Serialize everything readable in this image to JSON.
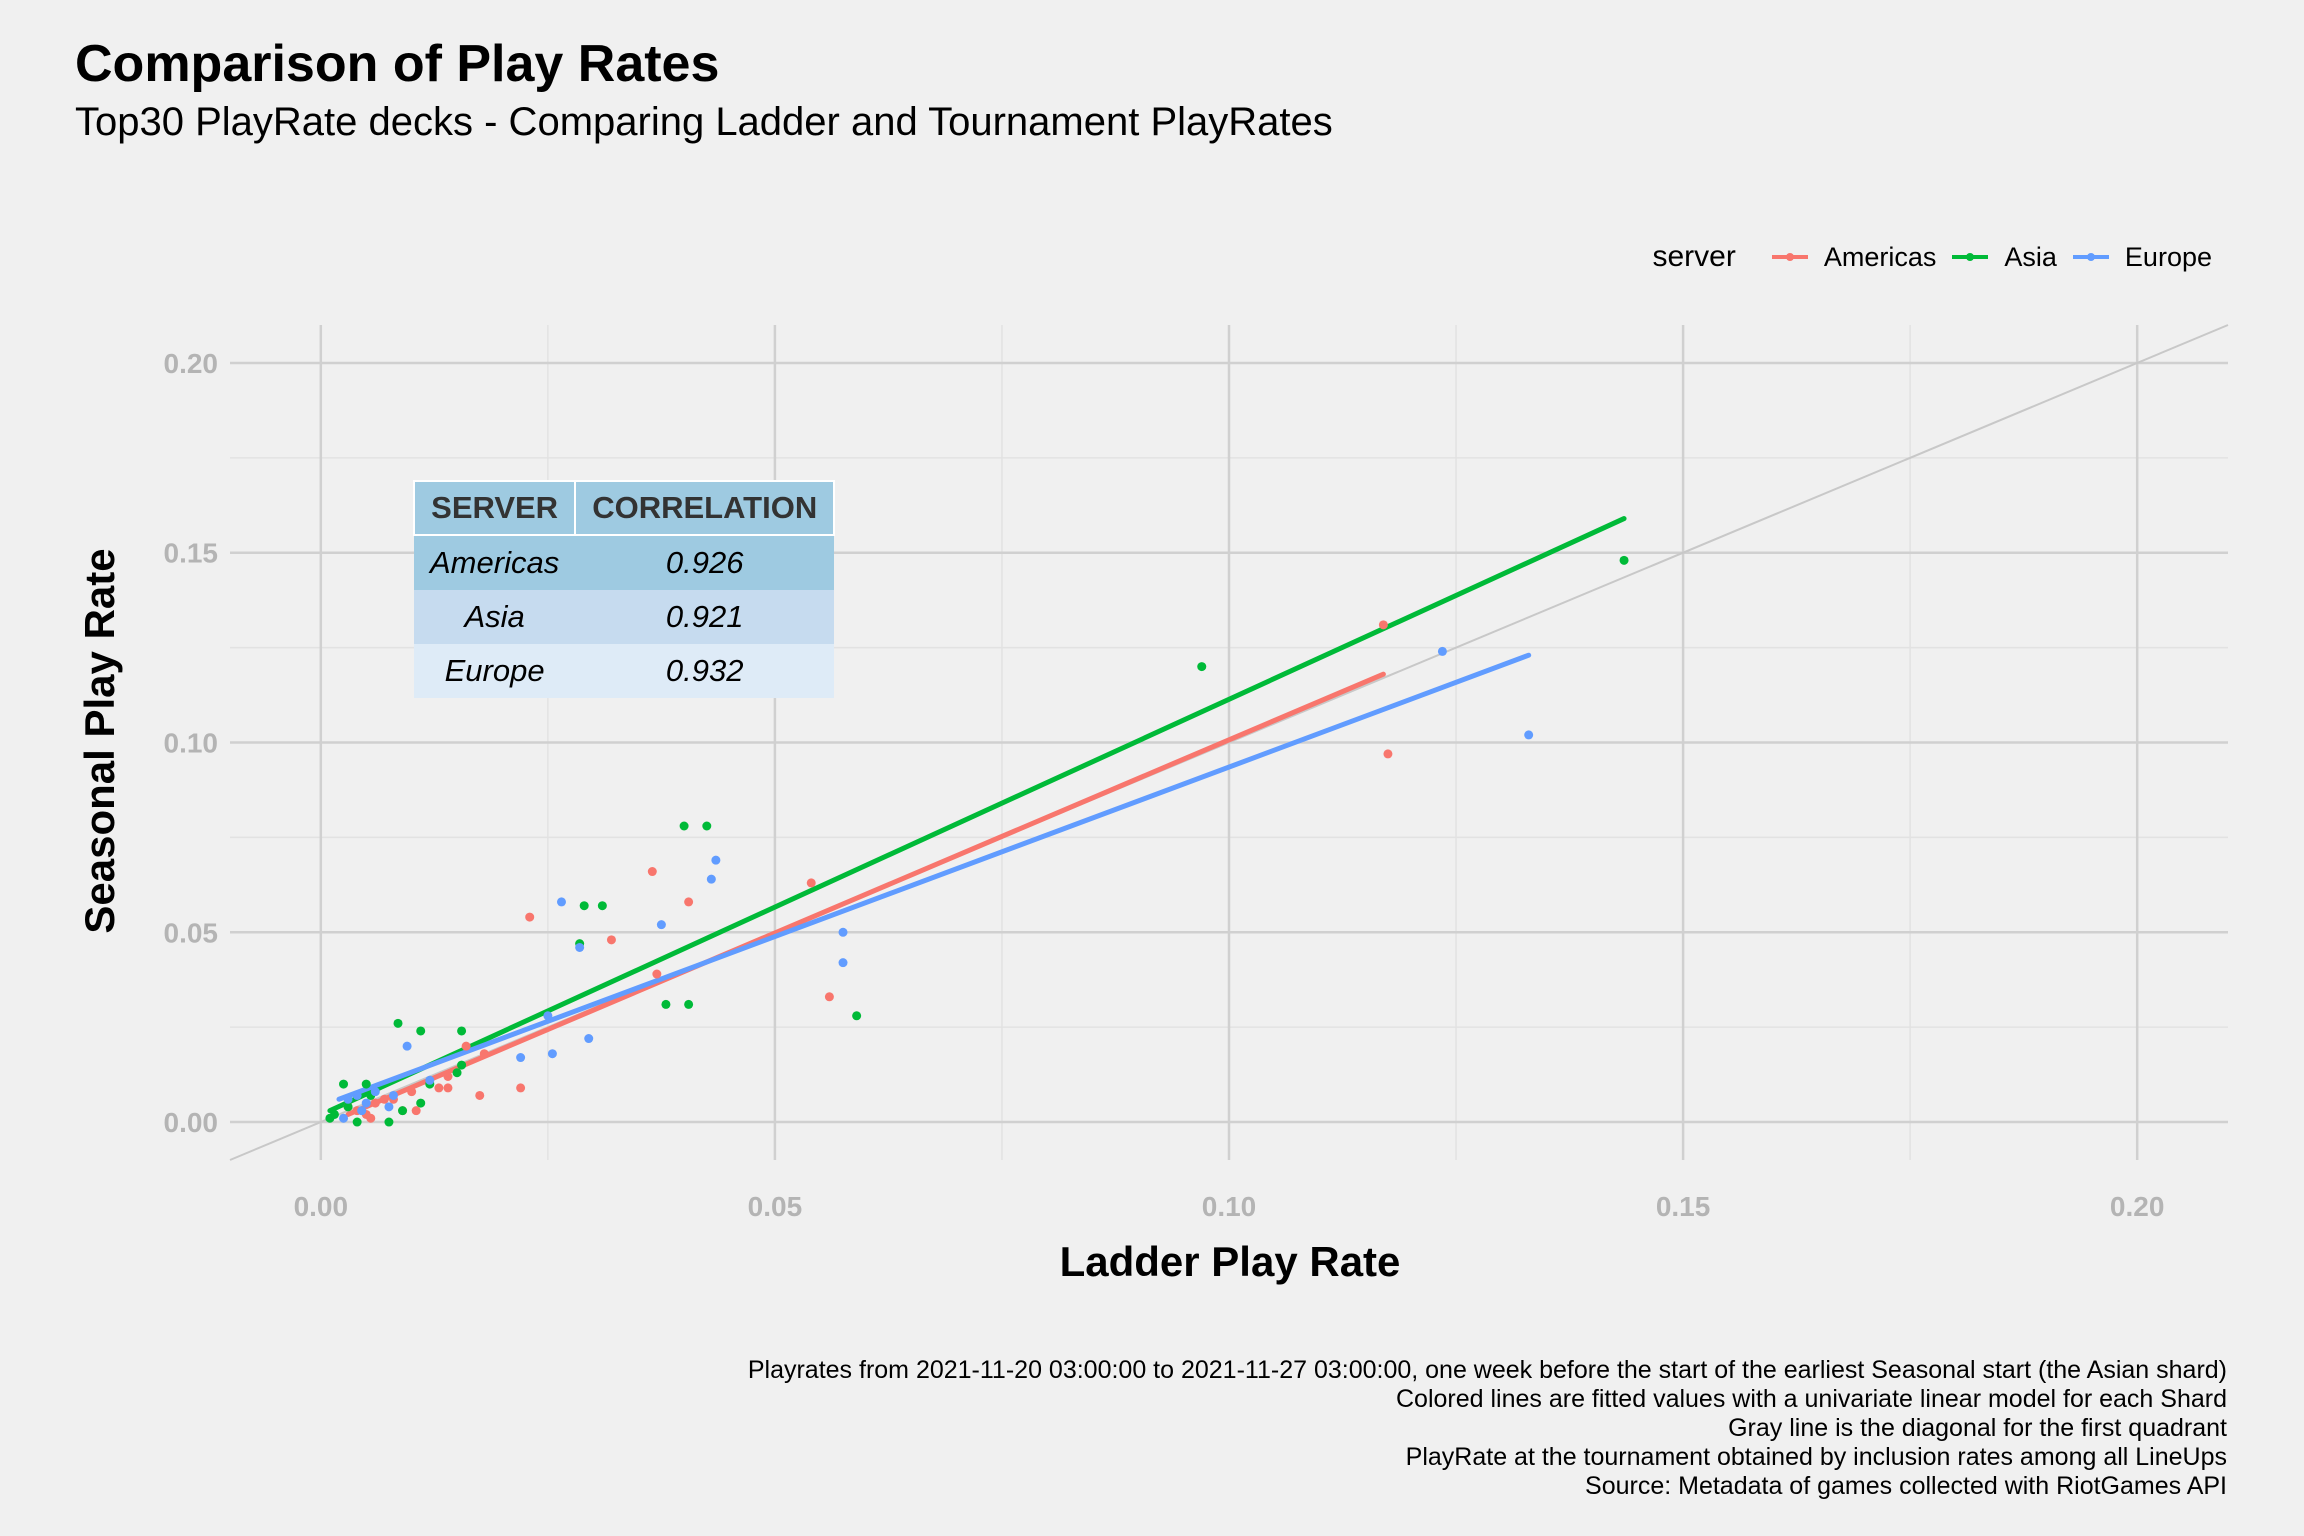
{
  "header": {
    "title": "Comparison of Play Rates",
    "subtitle": "Top30 PlayRate decks - Comparing Ladder and Tournament PlayRates"
  },
  "legend": {
    "title": "server",
    "items": [
      {
        "label": "Americas",
        "color": "#f8766d"
      },
      {
        "label": "Asia",
        "color": "#00ba38"
      },
      {
        "label": "Europe",
        "color": "#619cff"
      }
    ]
  },
  "table": {
    "headers": [
      "SERVER",
      "CORRELATION"
    ],
    "rows": [
      {
        "server": "Americas",
        "correlation": "0.926"
      },
      {
        "server": "Asia",
        "correlation": "0.921"
      },
      {
        "server": "Europe",
        "correlation": "0.932"
      }
    ]
  },
  "caption": {
    "lines": [
      "Playrates from 2021-11-20 03:00:00 to 2021-11-27 03:00:00, one week before the start of the earliest Seasonal start (the Asian shard)",
      "Colored lines are fitted values with a univariate linear model for each Shard",
      "Gray line is the diagonal for the first quadrant",
      "PlayRate at the tournament obtained by inclusion rates among all LineUps",
      "Source: Metadata of games collected with RiotGames API"
    ]
  },
  "chart_data": {
    "type": "scatter",
    "title": "Comparison of Play Rates",
    "subtitle": "Top30 PlayRate decks - Comparing Ladder and Tournament PlayRates",
    "xlabel": "Ladder Play Rate",
    "ylabel": "Seasonal Play Rate",
    "xlim": [
      -0.01,
      0.21
    ],
    "ylim": [
      -0.01,
      0.21
    ],
    "xticks": [
      "0.00",
      "0.05",
      "0.10",
      "0.15",
      "0.20"
    ],
    "yticks": [
      "0.00",
      "0.05",
      "0.10",
      "0.15",
      "0.20"
    ],
    "grid": true,
    "legend_position": "top-right",
    "diagonal": {
      "color": "#c8c8c8"
    },
    "series": [
      {
        "name": "Americas",
        "color": "#f8766d",
        "fit": [
          [
            0.003,
            0.002
          ],
          [
            0.117,
            0.118
          ]
        ],
        "points": [
          [
            0.117,
            0.131
          ],
          [
            0.1175,
            0.097
          ],
          [
            0.054,
            0.063
          ],
          [
            0.0365,
            0.066
          ],
          [
            0.0405,
            0.058
          ],
          [
            0.023,
            0.054
          ],
          [
            0.032,
            0.048
          ],
          [
            0.056,
            0.033
          ],
          [
            0.037,
            0.039
          ],
          [
            0.018,
            0.018
          ],
          [
            0.016,
            0.02
          ],
          [
            0.014,
            0.012
          ],
          [
            0.013,
            0.009
          ],
          [
            0.014,
            0.009
          ],
          [
            0.022,
            0.009
          ],
          [
            0.0175,
            0.007
          ],
          [
            0.01,
            0.008
          ],
          [
            0.008,
            0.006
          ],
          [
            0.006,
            0.005
          ],
          [
            0.004,
            0.003
          ],
          [
            0.005,
            0.002
          ],
          [
            0.003,
            0.004
          ],
          [
            0.009,
            0.003
          ],
          [
            0.0105,
            0.003
          ],
          [
            0.0055,
            0.001
          ],
          [
            0.007,
            0.006
          ]
        ]
      },
      {
        "name": "Asia",
        "color": "#00ba38",
        "fit": [
          [
            0.001,
            0.003
          ],
          [
            0.1435,
            0.159
          ]
        ],
        "points": [
          [
            0.1435,
            0.148
          ],
          [
            0.097,
            0.12
          ],
          [
            0.04,
            0.078
          ],
          [
            0.0425,
            0.078
          ],
          [
            0.029,
            0.057
          ],
          [
            0.031,
            0.057
          ],
          [
            0.0285,
            0.047
          ],
          [
            0.038,
            0.031
          ],
          [
            0.0405,
            0.031
          ],
          [
            0.059,
            0.028
          ],
          [
            0.0085,
            0.026
          ],
          [
            0.011,
            0.024
          ],
          [
            0.0155,
            0.024
          ],
          [
            0.015,
            0.013
          ],
          [
            0.0155,
            0.015
          ],
          [
            0.012,
            0.01
          ],
          [
            0.011,
            0.005
          ],
          [
            0.0025,
            0.01
          ],
          [
            0.005,
            0.01
          ],
          [
            0.001,
            0.001
          ],
          [
            0.0015,
            0.002
          ],
          [
            0.004,
            0.0
          ],
          [
            0.0075,
            0.0
          ],
          [
            0.009,
            0.003
          ],
          [
            0.0055,
            0.007
          ],
          [
            0.003,
            0.004
          ]
        ]
      },
      {
        "name": "Europe",
        "color": "#619cff",
        "fit": [
          [
            0.002,
            0.006
          ],
          [
            0.133,
            0.123
          ]
        ],
        "points": [
          [
            0.1235,
            0.124
          ],
          [
            0.133,
            0.102
          ],
          [
            0.0435,
            0.069
          ],
          [
            0.043,
            0.064
          ],
          [
            0.0265,
            0.058
          ],
          [
            0.0375,
            0.052
          ],
          [
            0.0575,
            0.05
          ],
          [
            0.0285,
            0.046
          ],
          [
            0.0575,
            0.042
          ],
          [
            0.0295,
            0.022
          ],
          [
            0.0255,
            0.018
          ],
          [
            0.022,
            0.017
          ],
          [
            0.025,
            0.028
          ],
          [
            0.0095,
            0.02
          ],
          [
            0.008,
            0.007
          ],
          [
            0.005,
            0.005
          ],
          [
            0.003,
            0.006
          ],
          [
            0.0025,
            0.001
          ],
          [
            0.006,
            0.008
          ],
          [
            0.012,
            0.011
          ],
          [
            0.004,
            0.007
          ],
          [
            0.0075,
            0.004
          ],
          [
            0.0045,
            0.003
          ]
        ]
      }
    ]
  }
}
